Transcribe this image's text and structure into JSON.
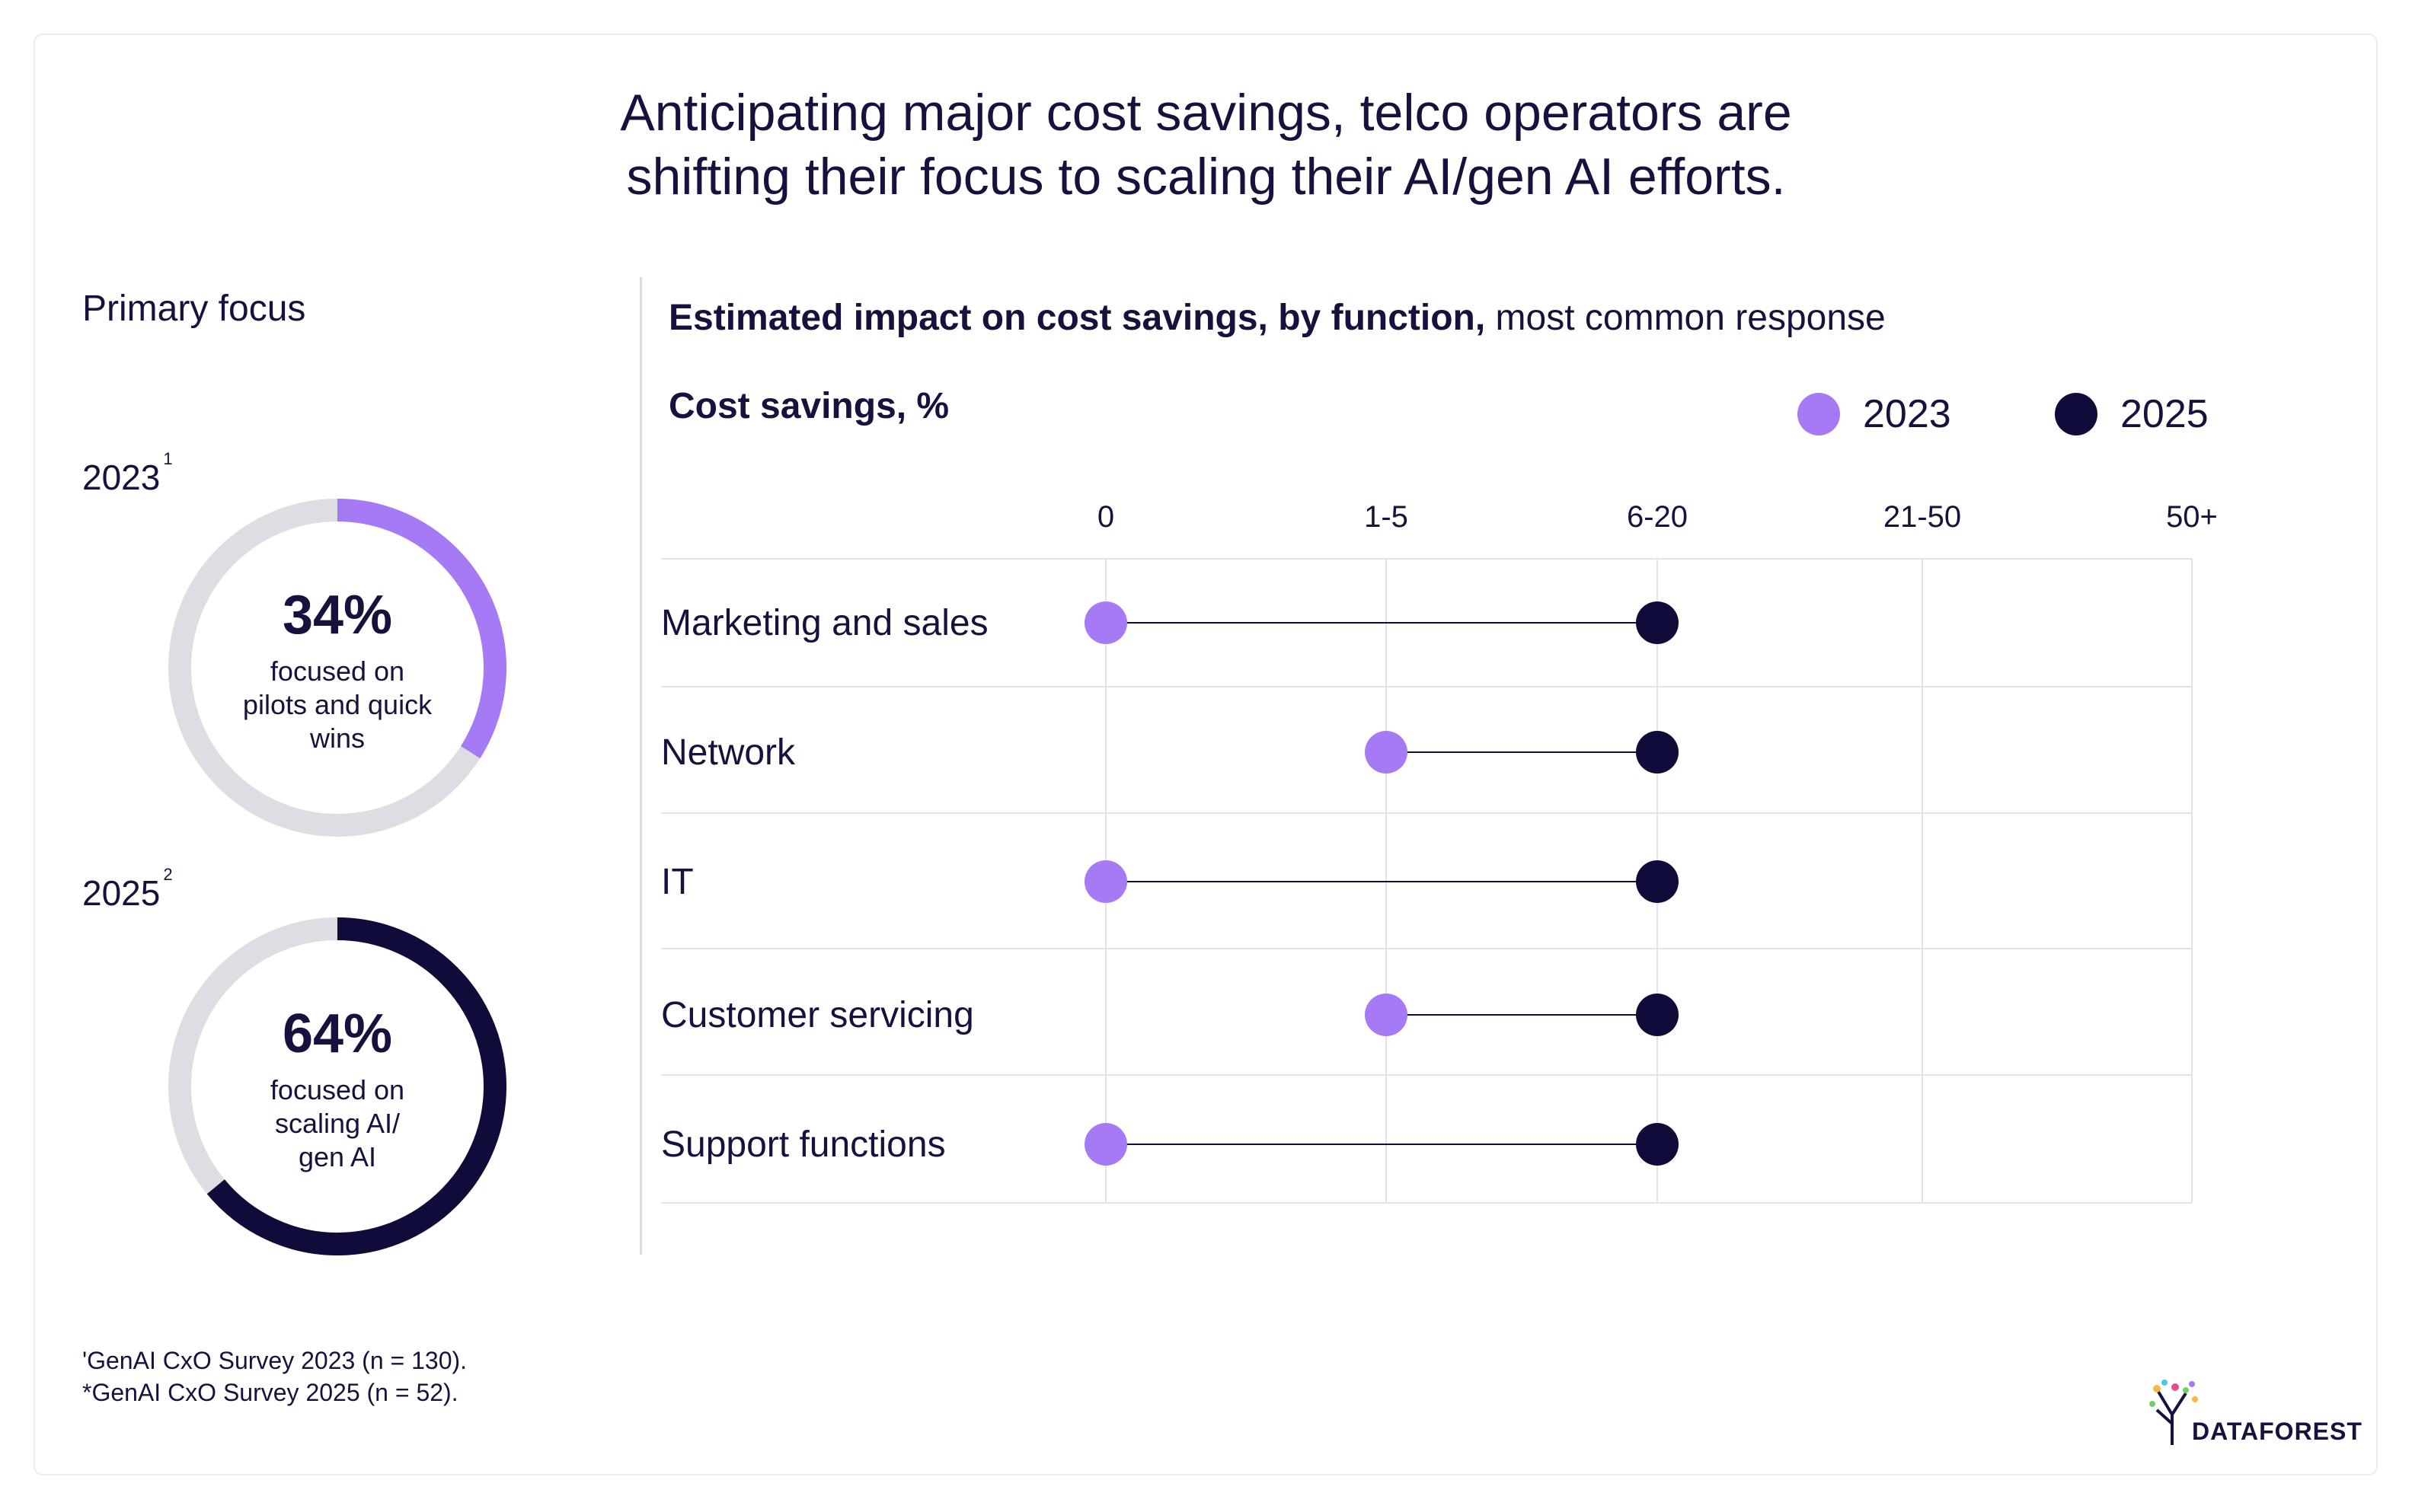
{
  "title": {
    "line1": "Anticipating major cost savings, telco operators are",
    "line2": "shifting their focus to scaling their AI/gen AI efforts."
  },
  "left_panel": {
    "heading": "Primary focus",
    "donuts": [
      {
        "year": "2023",
        "footnote_mark": "1",
        "percent_label": "34%",
        "percent": 34,
        "desc_lines": [
          "focused on",
          "pilots and quick",
          "wins"
        ]
      },
      {
        "year": "2025",
        "footnote_mark": "2",
        "percent_label": "64%",
        "percent": 64,
        "desc_lines": [
          "focused on",
          "scaling AI/",
          "gen AI"
        ]
      }
    ]
  },
  "right_panel": {
    "subtitle_bold": "Estimated impact on cost savings, by function,",
    "subtitle_regular": " most common response"
  },
  "footnotes": {
    "line1": "'GenAI CxO Survey 2023 (n = 130).",
    "line2": "*GenAI CxO Survey 2025 (n = 52)."
  },
  "logo": {
    "text": "DATAFOREST"
  },
  "colors": {
    "purple": "#a57af4",
    "navy": "#0f0c3a",
    "track": "#dddde3",
    "grid": "#e2e2e8",
    "text": "#15123d"
  },
  "chart_data": {
    "type": "dumbbell",
    "title": "Estimated impact on cost savings, by function, most common response",
    "ylabel": "Cost savings, %",
    "x_categories": [
      "0",
      "1-5",
      "6-20",
      "21-50",
      "50+"
    ],
    "legend": [
      "2023",
      "2025"
    ],
    "rows": [
      {
        "label": "Marketing and sales",
        "v2023": "0",
        "v2025": "6-20"
      },
      {
        "label": "Network",
        "v2023": "1-5",
        "v2025": "6-20"
      },
      {
        "label": "IT",
        "v2023": "0",
        "v2025": "6-20"
      },
      {
        "label": "Customer servicing",
        "v2023": "1-5",
        "v2025": "6-20"
      },
      {
        "label": "Support functions",
        "v2023": "0",
        "v2025": "6-20"
      }
    ]
  }
}
